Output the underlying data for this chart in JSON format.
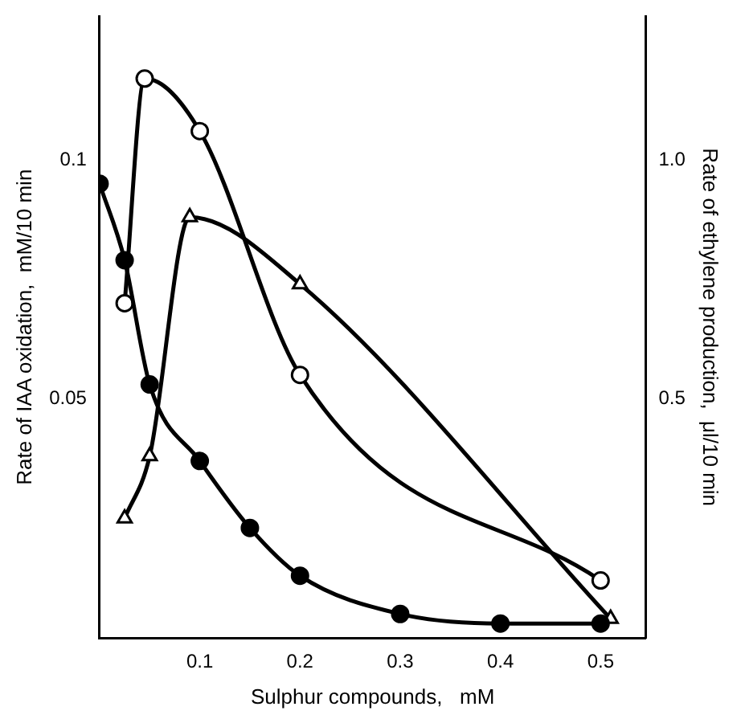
{
  "chart_data": {
    "type": "line",
    "xlabel": "Sulphur compounds,   mM",
    "ylabel": "Rate of IAA oxidation,  mM/10 min",
    "y2label": "Rate of ethylene production,  μl/10 min",
    "xlim": [
      0,
      0.545
    ],
    "xticks": [
      0.1,
      0.2,
      0.3,
      0.4,
      0.5
    ],
    "ylim": [
      0,
      0.13
    ],
    "yticks": [
      0.05,
      0.1
    ],
    "y2lim": [
      0,
      1.3
    ],
    "y2ticks": [
      0.5,
      {
        "value": 1.0,
        "label": "1.0"
      }
    ],
    "grid": false,
    "legend": false,
    "line_style": "solid",
    "series": [
      {
        "color": "#000000",
        "marker": "circle",
        "x": [
          0,
          0.025,
          0.05,
          0.1,
          0.15,
          0.2,
          0.3,
          0.4,
          0.5
        ],
        "values": [
          0.095,
          0.079,
          0.053,
          0.037,
          0.023,
          0.013,
          0.005,
          0.003,
          0.003
        ]
      },
      {
        "color": "#000000",
        "colors": [
          "#ffffff",
          "#ffffff",
          "#ffffff",
          "#ffffff",
          "#ffffff"
        ],
        "marker": "circle",
        "axis": "y2",
        "x": [
          0.025,
          0.045,
          0.1,
          0.2,
          0.5
        ],
        "values": [
          0.7,
          1.17,
          1.06,
          0.55,
          0.12
        ]
      },
      {
        "color": "#000000",
        "colors": [
          "#ffffff",
          "#ffffff",
          "#ffffff",
          "#ffffff",
          "#ffffff"
        ],
        "marker": "triangle",
        "x": [
          0.025,
          0.05,
          0.09,
          0.2,
          0.51
        ],
        "values": [
          0.025,
          0.038,
          0.088,
          0.074,
          0.004
        ]
      }
    ]
  }
}
